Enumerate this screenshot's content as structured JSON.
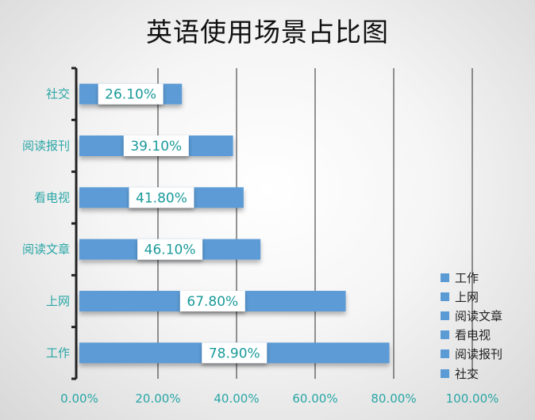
{
  "chart_data": {
    "type": "bar",
    "orientation": "horizontal",
    "title": "英语使用场景占比图",
    "categories": [
      "工作",
      "上网",
      "阅读文章",
      "看电视",
      "阅读报刊",
      "社交"
    ],
    "values": [
      78.9,
      67.8,
      46.1,
      41.8,
      39.1,
      26.1
    ],
    "value_labels": [
      "78.90%",
      "67.80%",
      "46.10%",
      "41.80%",
      "39.10%",
      "26.10%"
    ],
    "x_ticks": [
      "0.00%",
      "20.00%",
      "40.00%",
      "60.00%",
      "80.00%",
      "100.00%"
    ],
    "xlim": [
      0,
      100
    ],
    "grid": true,
    "legend": {
      "placement": "bottom-right",
      "entries": [
        "工作",
        "上网",
        "阅读文章",
        "看电视",
        "阅读报刊",
        "社交"
      ]
    },
    "bar_color": "#5b9bd5"
  }
}
